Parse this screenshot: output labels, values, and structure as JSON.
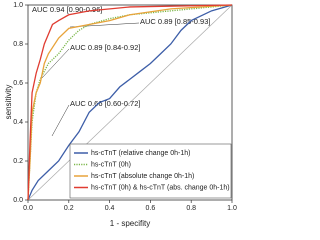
{
  "chart_data": {
    "type": "line",
    "x_label": "1 - specifity",
    "y_label": "sensitivity",
    "xlim": [
      0,
      1
    ],
    "ylim": [
      0,
      1
    ],
    "xticks": [
      {
        "value": 0,
        "label": "0.0"
      },
      {
        "value": 0.2,
        "label": "0.2"
      },
      {
        "value": 0.4,
        "label": "0.4"
      },
      {
        "value": 0.6,
        "label": "0.6"
      },
      {
        "value": 0.8,
        "label": "0.8"
      },
      {
        "value": 1,
        "label": "1.0"
      }
    ],
    "yticks": [
      {
        "value": 0,
        "label": "0.0"
      },
      {
        "value": 0.2,
        "label": "0.2"
      },
      {
        "value": 0.4,
        "label": "0.4"
      },
      {
        "value": 0.6,
        "label": "0.6"
      },
      {
        "value": 0.8,
        "label": "0.8"
      },
      {
        "value": 1,
        "label": "1.0"
      }
    ],
    "legend": "lower right",
    "annotations": [
      "AUC 0.94 [0.90-0.96]",
      "AUC 0.89 [0.85-0.93]",
      "AUC 0.89 [0.84-0.92]",
      "AUC 0.66 [0.60-0.72]"
    ],
    "series": [
      {
        "name": "hs-cTnT (relative change 0h-1h)",
        "color": "#3d5ea8",
        "dash": "solid",
        "x": [
          0,
          0.02,
          0.05,
          0.1,
          0.15,
          0.2,
          0.25,
          0.3,
          0.35,
          0.4,
          0.45,
          0.5,
          0.55,
          0.6,
          0.65,
          0.7,
          0.75,
          0.8,
          0.9,
          1
        ],
        "values": [
          0,
          0.05,
          0.1,
          0.15,
          0.2,
          0.28,
          0.35,
          0.45,
          0.5,
          0.52,
          0.58,
          0.62,
          0.66,
          0.7,
          0.75,
          0.8,
          0.87,
          0.92,
          0.97,
          1
        ]
      },
      {
        "name": "hs-cTnT (0h)",
        "color": "#7ab648",
        "dash": "dotted",
        "x": [
          0,
          0.01,
          0.02,
          0.04,
          0.06,
          0.08,
          0.1,
          0.15,
          0.2,
          0.25,
          0.3,
          0.4,
          0.5,
          0.6,
          0.8,
          1
        ],
        "values": [
          0,
          0.2,
          0.4,
          0.55,
          0.62,
          0.66,
          0.7,
          0.75,
          0.82,
          0.87,
          0.9,
          0.93,
          0.95,
          0.96,
          0.98,
          1
        ]
      },
      {
        "name": "hs-cTnT (absolute change 0h-1h)",
        "color": "#e8a33a",
        "dash": "solid",
        "x": [
          0,
          0.01,
          0.02,
          0.04,
          0.06,
          0.08,
          0.1,
          0.15,
          0.2,
          0.3,
          0.4,
          0.5,
          0.7,
          1
        ],
        "values": [
          0,
          0.2,
          0.45,
          0.55,
          0.6,
          0.7,
          0.75,
          0.83,
          0.88,
          0.9,
          0.92,
          0.95,
          0.98,
          1
        ]
      },
      {
        "name": "hs-cTnT (0h) & hs-cTnT (abs. change 0h-1h)",
        "color": "#e03c31",
        "dash": "solid",
        "x": [
          0,
          0.01,
          0.02,
          0.04,
          0.06,
          0.08,
          0.1,
          0.12,
          0.15,
          0.2,
          0.3,
          0.5,
          1
        ],
        "values": [
          0,
          0.3,
          0.55,
          0.65,
          0.72,
          0.8,
          0.85,
          0.9,
          0.92,
          0.95,
          0.97,
          0.99,
          1
        ]
      }
    ]
  }
}
